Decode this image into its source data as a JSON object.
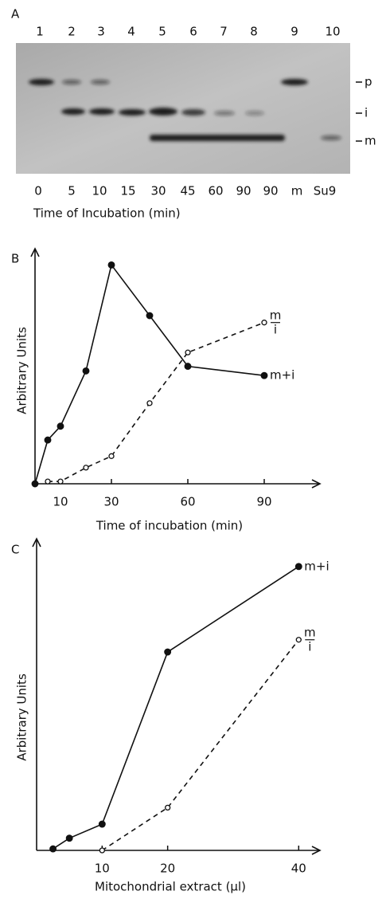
{
  "gel": {
    "label": "A",
    "lanes": [
      "1",
      "2",
      "3",
      "4",
      "5",
      "6",
      "7",
      "8",
      "9",
      "10"
    ],
    "bands": [
      "p",
      "i",
      "m"
    ],
    "conditions": [
      "0",
      "5",
      "10",
      "15",
      "30",
      "45",
      "60",
      "90",
      "90",
      "m",
      "Su9"
    ],
    "axis_label": "Time of Incubation (min)"
  },
  "chart_data": [
    {
      "type": "line",
      "label": "B",
      "xlabel": "Time of incubation (min)",
      "ylabel": "Arbitrary Units",
      "xlim": [
        0,
        110
      ],
      "ylim": [
        0,
        100
      ],
      "xticks": [
        10,
        30,
        60,
        90
      ],
      "series": [
        {
          "name": "m+i",
          "color": "#111111",
          "style": "solid",
          "marker": "filled",
          "x": [
            0,
            5,
            10,
            20,
            30,
            45,
            60,
            90
          ],
          "values": [
            0,
            19,
            25,
            49,
            95,
            73,
            51,
            47
          ]
        },
        {
          "name": "m/i",
          "color": "#111111",
          "style": "dashed",
          "marker": "open",
          "x": [
            5,
            10,
            20,
            30,
            45,
            60,
            90
          ],
          "values": [
            1,
            1,
            7,
            12,
            35,
            57,
            70
          ]
        }
      ]
    },
    {
      "type": "line",
      "label": "C",
      "xlabel": "Mitochondrial extract (µl)",
      "ylabel": "Arbitrary Units",
      "xlim": [
        0,
        43
      ],
      "ylim": [
        0,
        100
      ],
      "xticks": [
        10,
        20,
        40
      ],
      "series": [
        {
          "name": "m+i",
          "color": "#111111",
          "style": "solid",
          "marker": "filled",
          "x": [
            2.5,
            5,
            10,
            20,
            40
          ],
          "values": [
            0.5,
            4,
            8.6,
            65,
            93
          ]
        },
        {
          "name": "m/i",
          "color": "#111111",
          "style": "dashed",
          "marker": "open",
          "x": [
            10,
            20,
            40
          ],
          "values": [
            0,
            14,
            69
          ]
        }
      ]
    }
  ]
}
